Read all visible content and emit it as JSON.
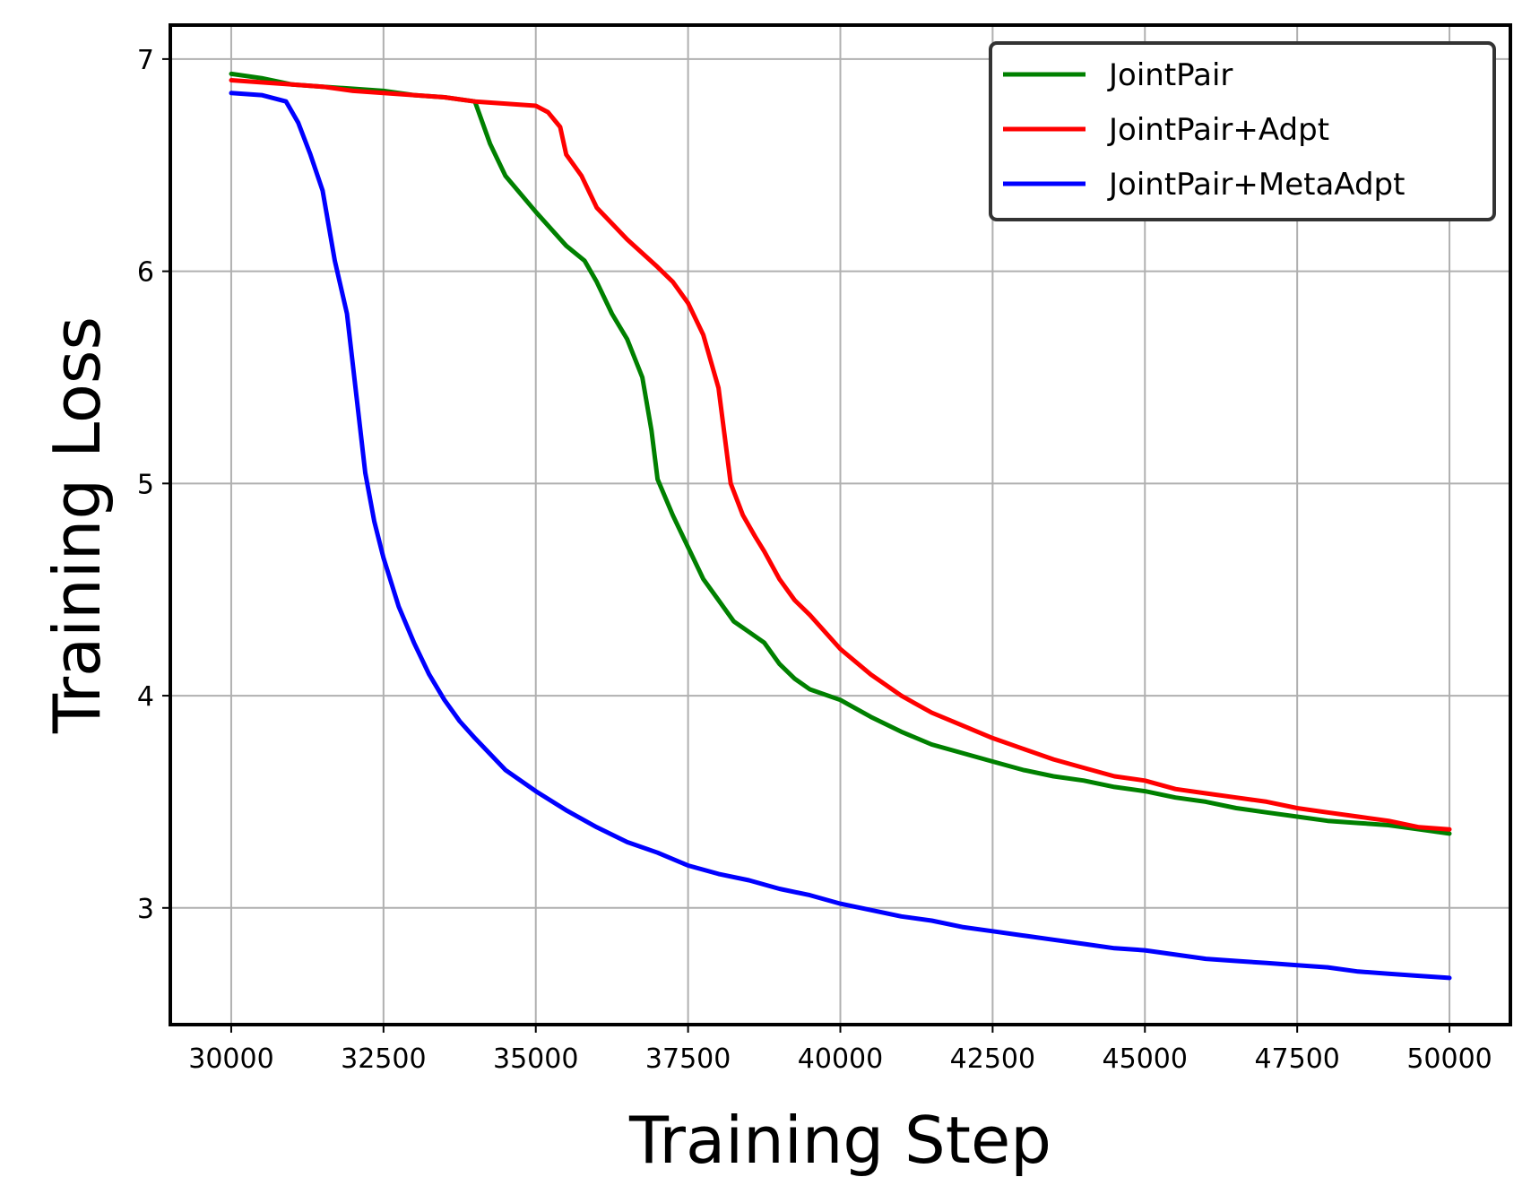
{
  "chart_data": {
    "type": "line",
    "title": "",
    "xlabel": "Training Step",
    "ylabel": "Training Loss",
    "xlim": [
      29000,
      51000
    ],
    "ylim": [
      2.45,
      7.16
    ],
    "xticks": [
      30000,
      32500,
      35000,
      37500,
      40000,
      42500,
      45000,
      47500,
      50000
    ],
    "xtick_labels": [
      "30000",
      "32500",
      "35000",
      "37500",
      "40000",
      "42500",
      "45000",
      "47500",
      "50000"
    ],
    "yticks": [
      3,
      4,
      5,
      6,
      7
    ],
    "ytick_labels": [
      "3",
      "4",
      "5",
      "6",
      "7"
    ],
    "grid": true,
    "legend_position": "top-right",
    "series": [
      {
        "name": "JointPair",
        "color": "#008000",
        "x": [
          30000,
          30500,
          31000,
          31500,
          32000,
          32500,
          33000,
          33500,
          34000,
          34250,
          34500,
          35000,
          35500,
          35800,
          36000,
          36250,
          36500,
          36750,
          36900,
          37000,
          37250,
          37500,
          37750,
          38000,
          38250,
          38500,
          38750,
          39000,
          39250,
          39500,
          40000,
          40500,
          41000,
          41500,
          42000,
          42500,
          43000,
          43500,
          44000,
          44500,
          45000,
          45500,
          46000,
          46500,
          47000,
          47500,
          48000,
          48500,
          49000,
          49500,
          50000
        ],
        "y": [
          6.93,
          6.91,
          6.88,
          6.87,
          6.86,
          6.85,
          6.83,
          6.82,
          6.8,
          6.6,
          6.45,
          6.28,
          6.12,
          6.05,
          5.95,
          5.8,
          5.68,
          5.5,
          5.25,
          5.02,
          4.85,
          4.7,
          4.55,
          4.45,
          4.35,
          4.3,
          4.25,
          4.15,
          4.08,
          4.03,
          3.98,
          3.9,
          3.83,
          3.77,
          3.73,
          3.69,
          3.65,
          3.62,
          3.6,
          3.57,
          3.55,
          3.52,
          3.5,
          3.47,
          3.45,
          3.43,
          3.41,
          3.4,
          3.39,
          3.37,
          3.35
        ]
      },
      {
        "name": "JointPair+Adpt",
        "color": "#ff0000",
        "x": [
          30000,
          30500,
          31000,
          31500,
          32000,
          32500,
          33000,
          33500,
          34000,
          34500,
          35000,
          35200,
          35400,
          35500,
          35750,
          36000,
          36500,
          37000,
          37250,
          37500,
          37750,
          38000,
          38200,
          38400,
          38600,
          38750,
          39000,
          39250,
          39500,
          40000,
          40500,
          41000,
          41500,
          42000,
          42500,
          43000,
          43500,
          44000,
          44500,
          45000,
          45500,
          46000,
          46500,
          47000,
          47500,
          48000,
          48500,
          49000,
          49500,
          50000
        ],
        "y": [
          6.9,
          6.89,
          6.88,
          6.87,
          6.85,
          6.84,
          6.83,
          6.82,
          6.8,
          6.79,
          6.78,
          6.75,
          6.68,
          6.55,
          6.45,
          6.3,
          6.15,
          6.02,
          5.95,
          5.85,
          5.7,
          5.45,
          5.0,
          4.85,
          4.75,
          4.68,
          4.55,
          4.45,
          4.38,
          4.22,
          4.1,
          4.0,
          3.92,
          3.86,
          3.8,
          3.75,
          3.7,
          3.66,
          3.62,
          3.6,
          3.56,
          3.54,
          3.52,
          3.5,
          3.47,
          3.45,
          3.43,
          3.41,
          3.38,
          3.37
        ]
      },
      {
        "name": "JointPair+MetaAdpt",
        "color": "#0000ff",
        "x": [
          30000,
          30500,
          30900,
          31100,
          31300,
          31500,
          31700,
          31900,
          32000,
          32100,
          32200,
          32350,
          32500,
          32750,
          33000,
          33250,
          33500,
          33750,
          34000,
          34500,
          35000,
          35500,
          36000,
          36500,
          37000,
          37500,
          38000,
          38500,
          39000,
          39500,
          40000,
          40500,
          41000,
          41500,
          42000,
          42500,
          43000,
          43500,
          44000,
          44500,
          45000,
          45500,
          46000,
          46500,
          47000,
          47500,
          48000,
          48500,
          49000,
          49500,
          50000
        ],
        "y": [
          6.84,
          6.83,
          6.8,
          6.7,
          6.55,
          6.38,
          6.05,
          5.8,
          5.55,
          5.3,
          5.05,
          4.82,
          4.65,
          4.42,
          4.25,
          4.1,
          3.98,
          3.88,
          3.8,
          3.65,
          3.55,
          3.46,
          3.38,
          3.31,
          3.26,
          3.2,
          3.16,
          3.13,
          3.09,
          3.06,
          3.02,
          2.99,
          2.96,
          2.94,
          2.91,
          2.89,
          2.87,
          2.85,
          2.83,
          2.81,
          2.8,
          2.78,
          2.76,
          2.75,
          2.74,
          2.73,
          2.72,
          2.7,
          2.69,
          2.68,
          2.67
        ]
      }
    ]
  }
}
